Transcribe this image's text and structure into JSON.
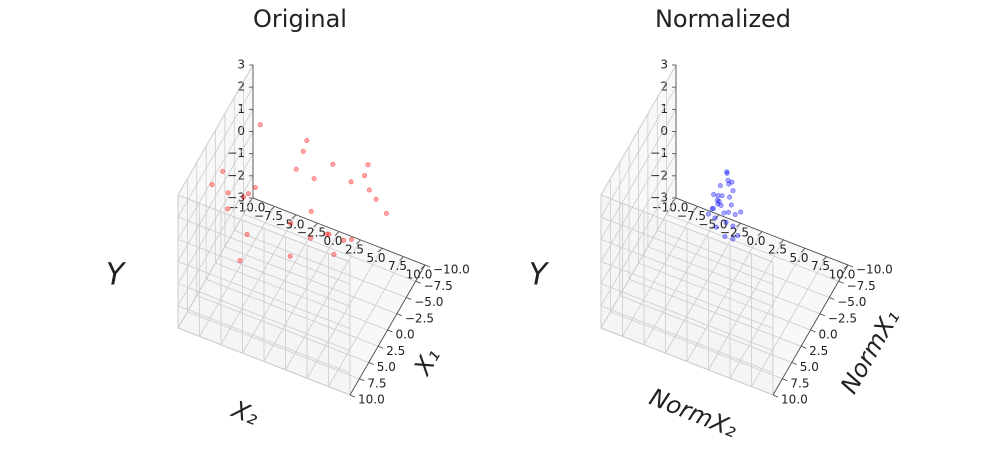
{
  "chart_data": [
    {
      "type": "scatter3d",
      "title": "Original",
      "xlabel": "X₂",
      "ylabel": "X₁",
      "zlabel": "Y",
      "xlim": [
        -10,
        10
      ],
      "ylim": [
        -10,
        10
      ],
      "zlim": [
        -3,
        3
      ],
      "xticks": [
        {
          "value": -10,
          "label": "−10.0"
        },
        {
          "value": -7.5,
          "label": "−7.5"
        },
        {
          "value": -5,
          "label": "−5.0"
        },
        {
          "value": -2.5,
          "label": "−2.5"
        },
        {
          "value": 0,
          "label": "0.0"
        },
        2.5,
        {
          "value": 5,
          "label": "5.0"
        },
        7.5,
        {
          "value": 10,
          "label": "10.0"
        }
      ],
      "yticks": [
        {
          "value": -10,
          "label": "−10.0"
        },
        {
          "value": -7.5,
          "label": "−7.5"
        },
        {
          "value": -5,
          "label": "−5.0"
        },
        {
          "value": -2.5,
          "label": "−2.5"
        },
        {
          "value": 0,
          "label": "0.0"
        },
        2.5,
        {
          "value": 5,
          "label": "5.0"
        },
        7.5,
        {
          "value": 10,
          "label": "10.0"
        }
      ],
      "zticks": [
        {
          "value": -3,
          "label": "−3"
        },
        {
          "value": -2,
          "label": "−2"
        },
        {
          "value": -1,
          "label": "−1"
        },
        0,
        1,
        2,
        3
      ],
      "grid": true,
      "color": "#ff0000",
      "x": [
        -7.5,
        2.4,
        -3.1,
        6.8,
        -0.9,
        4.2,
        -6.1,
        8.0,
        -4.4,
        1.7,
        5.5,
        -2.2,
        -8.3,
        3.6,
        7.1,
        -5.0,
        0.6,
        -6.7,
        4.9,
        -1.4,
        6.0,
        2.8,
        -7.9,
        0.2,
        -3.8,
        5.2,
        -5.7,
        7.6,
        1.0,
        -2.7
      ],
      "y": [
        -6.2,
        3.1,
        7.4,
        -2.5,
        0.8,
        -8.1,
        5.6,
        -4.3,
        2.2,
        6.9,
        -0.7,
        -5.5,
        4.8,
        1.5,
        -3.6,
        8.2,
        -7.0,
        0.1,
        3.9,
        -1.8,
        5.1,
        -6.8,
        2.9,
        -2.9,
        7.7,
        -4.9,
        1.1,
        6.2,
        -0.3,
        -7.6
      ],
      "values": [
        1.8,
        0.9,
        1.5,
        2.1,
        0.4,
        1.2,
        2.4,
        0.7,
        1.9,
        1.1,
        0.2,
        1.6,
        2.2,
        0.8,
        1.4,
        2.6,
        1.0,
        0.5,
        1.7,
        2.0,
        1.3,
        0.6,
        2.3,
        1.5,
        0.3,
        1.8,
        1.1,
        2.5,
        0.9,
        1.4
      ]
    },
    {
      "type": "scatter3d",
      "title": "Normalized",
      "xlabel": "NormX₂",
      "ylabel": "NormX₁",
      "zlabel": "Y",
      "xlim": [
        -10,
        10
      ],
      "ylim": [
        -10,
        10
      ],
      "zlim": [
        -3,
        3
      ],
      "xticks": [
        {
          "value": -10,
          "label": "−10.0"
        },
        {
          "value": -7.5,
          "label": "−7.5"
        },
        {
          "value": -5,
          "label": "−5.0"
        },
        {
          "value": -2.5,
          "label": "−2.5"
        },
        {
          "value": 0,
          "label": "0.0"
        },
        2.5,
        {
          "value": 5,
          "label": "5.0"
        },
        7.5,
        {
          "value": 10,
          "label": "10.0"
        }
      ],
      "yticks": [
        {
          "value": -10,
          "label": "−10.0"
        },
        {
          "value": -7.5,
          "label": "−7.5"
        },
        {
          "value": -5,
          "label": "−5.0"
        },
        {
          "value": -2.5,
          "label": "−2.5"
        },
        {
          "value": 0,
          "label": "0.0"
        },
        2.5,
        {
          "value": 5,
          "label": "5.0"
        },
        7.5,
        {
          "value": 10,
          "label": "10.0"
        }
      ],
      "zticks": [
        {
          "value": -3,
          "label": "−3"
        },
        {
          "value": -2,
          "label": "−2"
        },
        {
          "value": -1,
          "label": "−1"
        },
        0,
        1,
        2,
        3
      ],
      "grid": true,
      "color": "#0000ff",
      "x": [
        -0.6,
        0.9,
        0.2,
        -1.2,
        1.1,
        -0.3,
        0.5,
        -0.9,
        1.3,
        0.0,
        -0.5,
        1.0,
        -1.1,
        0.4,
        -0.8,
        0.7,
        -0.2,
        1.2,
        -1.4,
        0.3,
        -0.7,
        0.6,
        -1.0,
        0.8,
        -0.4,
        1.4,
        -0.1,
        0.2,
        -1.3,
        0.5
      ],
      "y": [
        0.4,
        -0.8,
        1.1,
        -0.2,
        0.7,
        -1.3,
        0.1,
        0.9,
        -0.5,
        1.4,
        -1.0,
        0.3,
        -0.6,
        0.8,
        -0.1,
        1.2,
        -1.4,
        0.5,
        -0.3,
        0.0,
        0.6,
        -0.9,
        1.0,
        -0.4,
        0.2,
        -1.1,
        0.7,
        -0.7,
        1.3,
        -0.2
      ],
      "values": [
        1.2,
        0.6,
        1.9,
        0.3,
        1.5,
        2.2,
        0.9,
        1.1,
        -0.2,
        1.7,
        0.4,
        2.4,
        1.0,
        0.0,
        1.4,
        0.8,
        1.8,
        0.5,
        1.3,
        2.6,
        0.2,
        1.6,
        1.1,
        -0.4,
        2.0,
        0.7,
        1.3,
        1.9,
        0.9,
        1.5
      ]
    }
  ]
}
